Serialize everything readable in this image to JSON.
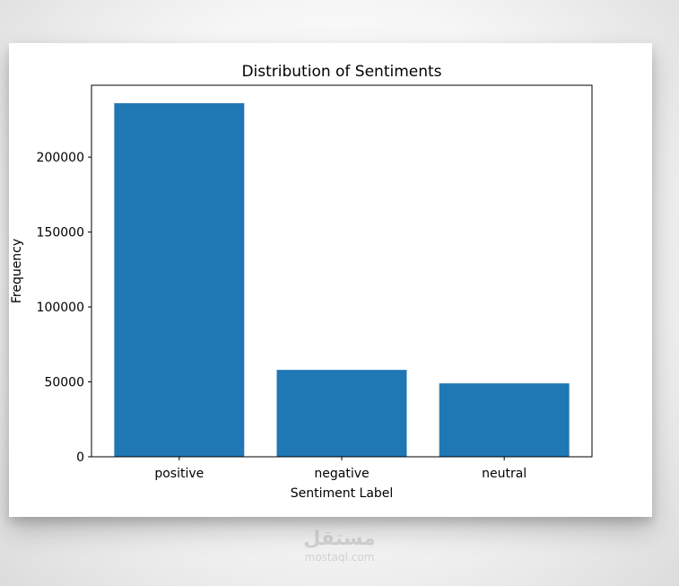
{
  "chart_data": {
    "type": "bar",
    "title": "Distribution of Sentiments",
    "xlabel": "Sentiment Label",
    "ylabel": "Frequency",
    "categories": [
      "positive",
      "negative",
      "neutral"
    ],
    "values": [
      236000,
      58000,
      49000
    ],
    "ylim": [
      0,
      248000
    ],
    "yticks": [
      0,
      50000,
      100000,
      150000,
      200000
    ],
    "ytick_labels": [
      "0",
      "50000",
      "100000",
      "150000",
      "200000"
    ],
    "bar_color": "#1f77b4",
    "grid": false
  },
  "watermark": {
    "logo": "مستقل",
    "text": "mostaql.com"
  }
}
